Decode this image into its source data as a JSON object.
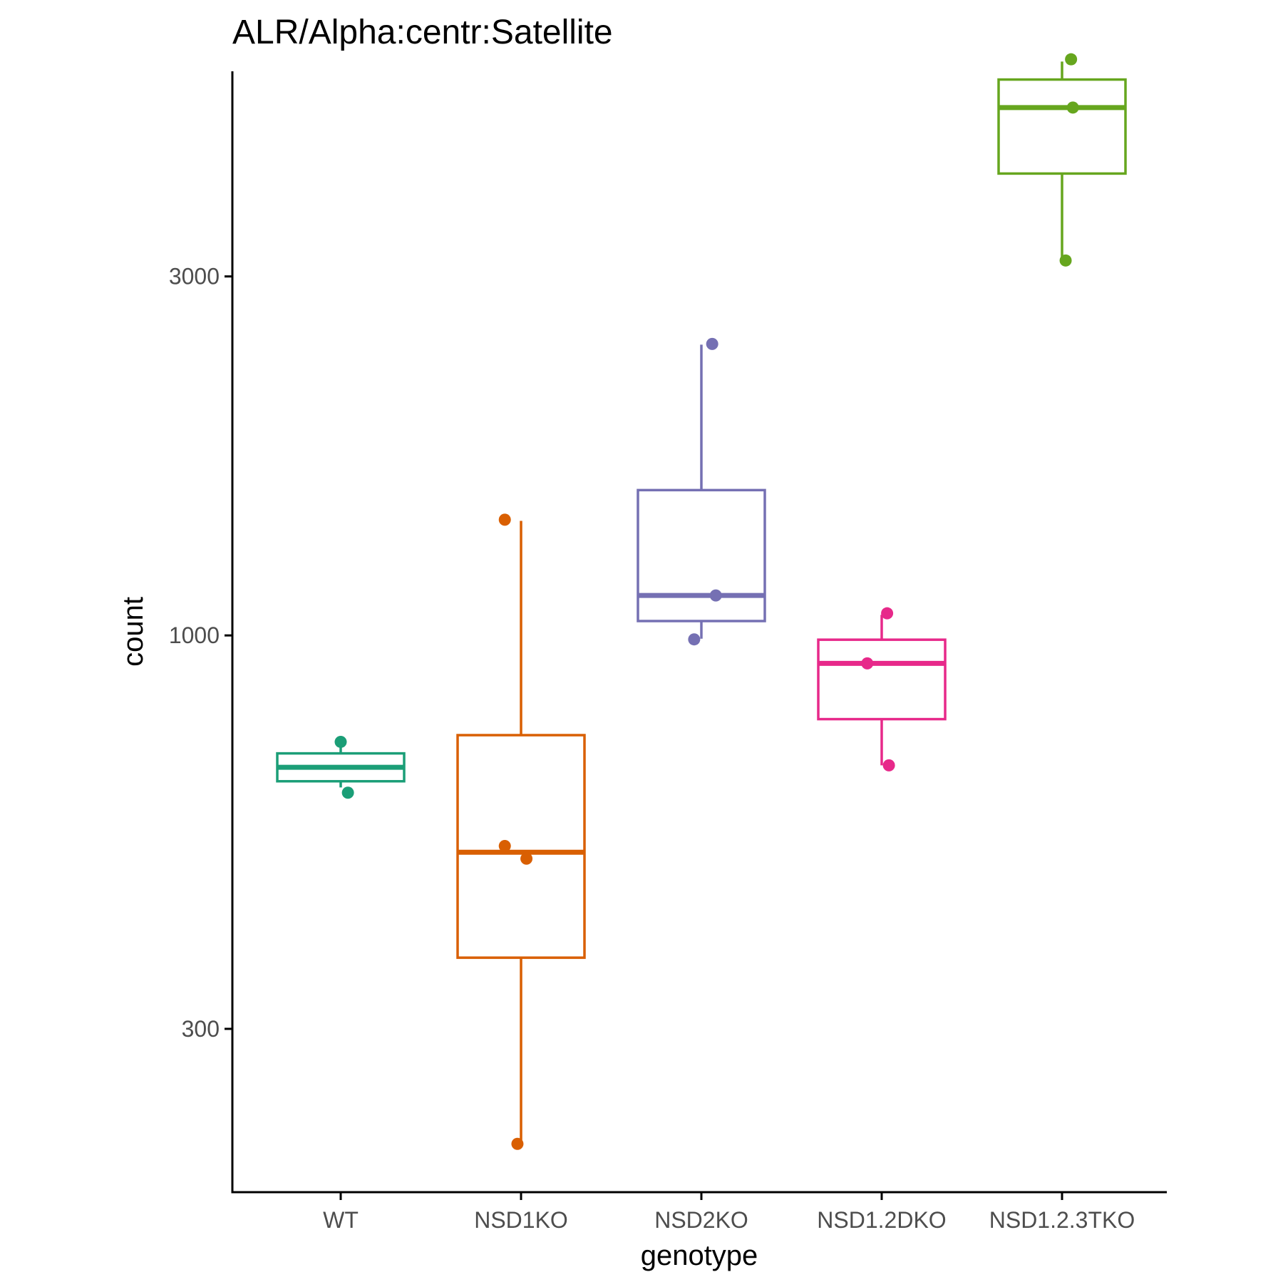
{
  "chart_data": {
    "type": "box",
    "title": "ALR/Alpha:centr:Satellite",
    "xlabel": "genotype",
    "ylabel": "count",
    "y_scale": "log10",
    "ylim": [
      182,
      5620
    ],
    "y_ticks": [
      {
        "value": 300,
        "label": "300"
      },
      {
        "value": 1000,
        "label": "1000"
      },
      {
        "value": 3000,
        "label": "3000"
      }
    ],
    "grid": false,
    "legend": "none",
    "categories": [
      "WT",
      "NSD1KO",
      "NSD2KO",
      "NSD1.2DKO",
      "NSD1.2.3TKO"
    ],
    "series": [
      {
        "category": "WT",
        "color": "#1b9e77",
        "box": {
          "lower_whisker": 628,
          "q1": 640,
          "median": 668,
          "q3": 697,
          "upper_whisker": 710
        },
        "points": [
          {
            "y": 722,
            "jitter": 0.0
          },
          {
            "y": 618,
            "jitter": 0.04
          }
        ]
      },
      {
        "category": "NSD1KO",
        "color": "#d95f02",
        "box": {
          "lower_whisker": 211,
          "q1": 373,
          "median": 515,
          "q3": 737,
          "upper_whisker": 1420
        },
        "points": [
          {
            "y": 1425,
            "jitter": -0.09
          },
          {
            "y": 525,
            "jitter": -0.09
          },
          {
            "y": 505,
            "jitter": 0.03
          },
          {
            "y": 211,
            "jitter": -0.02
          }
        ]
      },
      {
        "category": "NSD2KO",
        "color": "#7570b3",
        "box": {
          "lower_whisker": 990,
          "q1": 1045,
          "median": 1130,
          "q3": 1560,
          "upper_whisker": 2435
        },
        "points": [
          {
            "y": 2440,
            "jitter": 0.06
          },
          {
            "y": 1130,
            "jitter": 0.08
          },
          {
            "y": 988,
            "jitter": -0.04
          }
        ]
      },
      {
        "category": "NSD1.2DKO",
        "color": "#e7298a",
        "box": {
          "lower_whisker": 672,
          "q1": 774,
          "median": 918,
          "q3": 987,
          "upper_whisker": 1065
        },
        "points": [
          {
            "y": 1070,
            "jitter": 0.03
          },
          {
            "y": 918,
            "jitter": -0.08
          },
          {
            "y": 672,
            "jitter": 0.04
          }
        ]
      },
      {
        "category": "NSD1.2.3TKO",
        "color": "#66a61e",
        "box": {
          "lower_whisker": 3150,
          "q1": 4110,
          "median": 5030,
          "q3": 5480,
          "upper_whisker": 5790
        },
        "points": [
          {
            "y": 5830,
            "jitter": 0.05
          },
          {
            "y": 5030,
            "jitter": 0.06
          },
          {
            "y": 3150,
            "jitter": 0.02
          }
        ]
      }
    ]
  }
}
